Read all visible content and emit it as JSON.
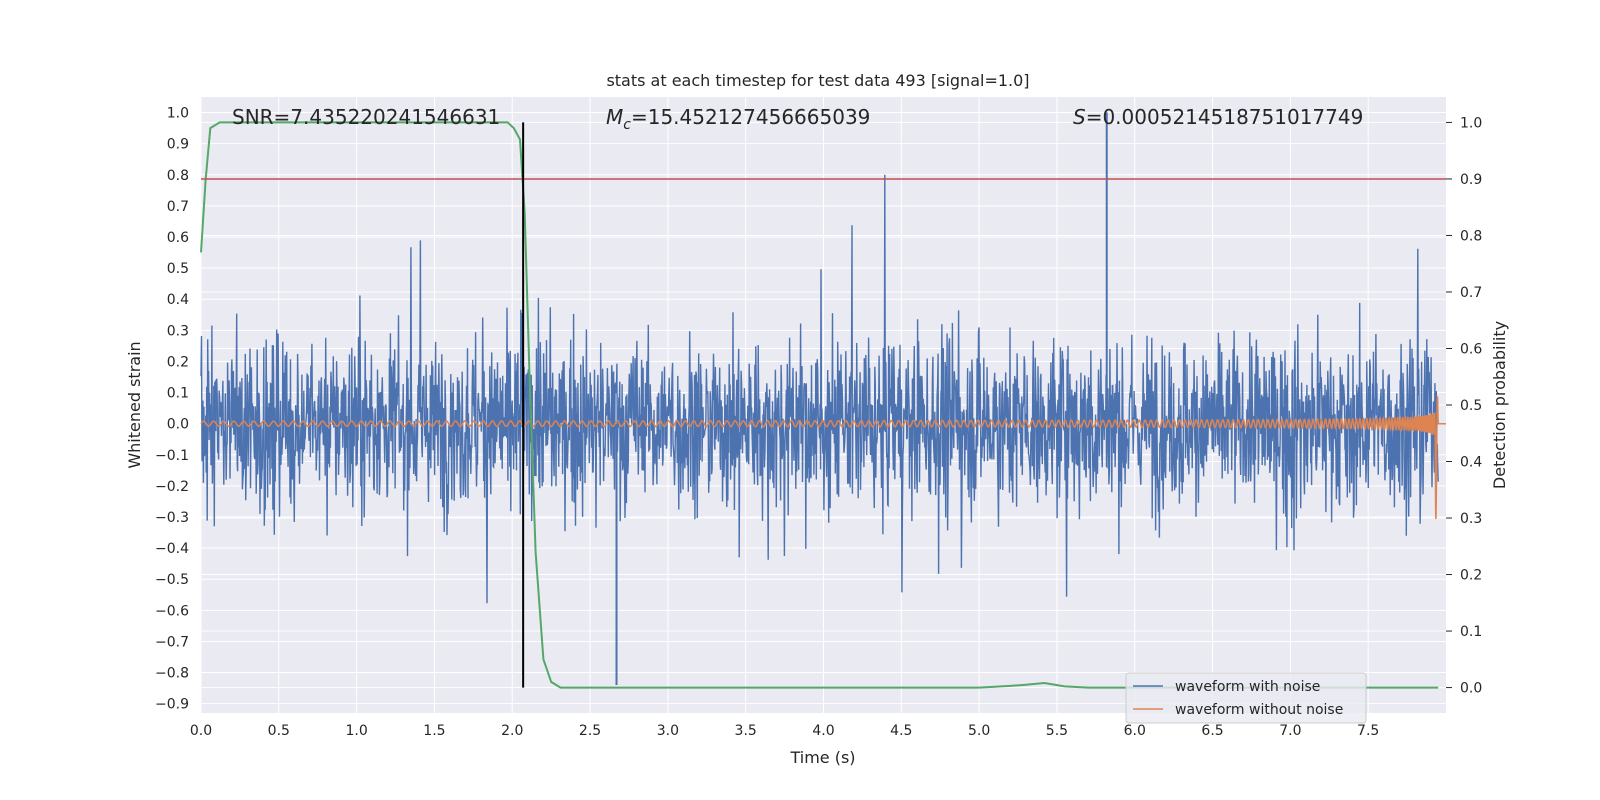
{
  "chart_data": {
    "type": "line",
    "title": "stats at each timestep for test data 493 [signal=1.0]",
    "xlabel": "Time (s)",
    "ylabel": "Whitened strain",
    "y2label": "Detection probability",
    "xlim": [
      0.0,
      8.0
    ],
    "ylim": [
      -0.93,
      1.05
    ],
    "y2lim": [
      -0.045,
      1.045
    ],
    "xticks": [
      "0.0",
      "0.5",
      "1.0",
      "1.5",
      "2.0",
      "2.5",
      "3.0",
      "3.5",
      "4.0",
      "4.5",
      "5.0",
      "5.5",
      "6.0",
      "6.5",
      "7.0",
      "7.5"
    ],
    "yticks": [
      "1.0",
      "0.9",
      "0.8",
      "0.7",
      "0.6",
      "0.5",
      "0.4",
      "0.3",
      "0.2",
      "0.1",
      "0.0",
      "−0.1",
      "−0.2",
      "−0.3",
      "−0.4",
      "−0.5",
      "−0.6",
      "−0.7",
      "−0.8",
      "−0.9"
    ],
    "y2ticks": [
      "1.0",
      "0.9",
      "0.8",
      "0.7",
      "0.6",
      "0.5",
      "0.4",
      "0.3",
      "0.2",
      "0.1",
      "0.0"
    ],
    "grid": true,
    "annotations": {
      "snr": "SNR=7.435220241546631",
      "mc_symbol": "M",
      "mc_sub": "c",
      "mc_value": "=15.452127456665039",
      "s_symbol": "S",
      "s_value": "=0.0005214518751017749"
    },
    "threshold_probability": 0.9,
    "detection_time": 2.07,
    "noise_amplitude": {
      "typical": 0.45,
      "max_positive": 1.0,
      "max_positive_time": 5.82,
      "min_negative": -0.84,
      "min_negative_time": 2.67
    },
    "series": [
      {
        "name": "waveform with noise",
        "color": "#4c72b0",
        "description_range": [
          -0.84,
          1.0
        ],
        "time_range": [
          0.0,
          7.95
        ]
      },
      {
        "name": "waveform without noise",
        "color": "#dd8452",
        "start_amplitude": 0.008,
        "peak_amplitude": 0.43,
        "merger_time": 7.93,
        "start_period_s": 0.065,
        "time_range": [
          0.0,
          8.0
        ]
      },
      {
        "name": "detection probability",
        "color": "#55a868",
        "axis": "right",
        "x": [
          0.0,
          0.03,
          0.06,
          0.12,
          0.2,
          0.4,
          1.0,
          1.5,
          1.97,
          2.01,
          2.05,
          2.08,
          2.11,
          2.15,
          2.2,
          2.25,
          2.31,
          2.4,
          3.0,
          4.0,
          5.0,
          5.2,
          5.3,
          5.42,
          5.55,
          5.7,
          6.5,
          7.95
        ],
        "y": [
          0.77,
          0.9,
          0.99,
          1.0,
          1.0,
          1.0,
          1.0,
          1.0,
          1.0,
          0.99,
          0.97,
          0.84,
          0.56,
          0.24,
          0.05,
          0.01,
          0.0,
          0.0,
          0.0,
          0.0,
          0.0,
          0.003,
          0.005,
          0.008,
          0.002,
          0.0,
          0.0,
          0.0
        ]
      }
    ],
    "legend": {
      "position": "lower-right",
      "entries": [
        "waveform with noise",
        "waveform without noise"
      ]
    }
  }
}
